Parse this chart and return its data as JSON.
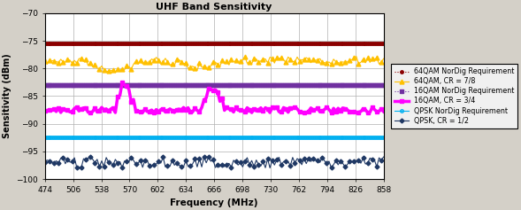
{
  "title": "UHF Band Sensitivity",
  "xlabel": "Frequency (MHz)",
  "ylabel": "Sensitivity (dBm)",
  "xlim": [
    474,
    858
  ],
  "ylim": [
    -100,
    -70
  ],
  "xticks": [
    474,
    506,
    538,
    570,
    602,
    634,
    666,
    698,
    730,
    762,
    794,
    826,
    858
  ],
  "yticks": [
    -100,
    -95,
    -90,
    -85,
    -80,
    -75,
    -70
  ],
  "background_color": "#d4d0c8",
  "plot_bg_color": "#ffffff",
  "series": {
    "qpsk_cr12": {
      "label": "QPSK, CR = 1/2",
      "color": "#1f3864",
      "marker": "D",
      "markersize": 2.5,
      "linewidth": 0.8,
      "base_value": -97.0,
      "noise_amp": 1.0
    },
    "qam16_cr34": {
      "label": "16QAM, CR = 3/4",
      "color": "#ff00ff",
      "marker": "s",
      "markersize": 2.5,
      "linewidth": 2.5,
      "base_value": -87.5,
      "noise_amp": 0.5
    },
    "qam64_cr78": {
      "label": "64QAM, CR = 7/8",
      "color": "#ffc000",
      "marker": "^",
      "markersize": 3.5,
      "linewidth": 0.8,
      "base_value": -78.5,
      "noise_amp": 0.7
    },
    "qpsk_nordig": {
      "label": "QPSK NorDig Requirement",
      "color": "#00b0f0",
      "marker": "o",
      "markersize": 2.5,
      "linewidth": 0.8,
      "value": -92.5
    },
    "qam16_nordig": {
      "label": "16QAM NorDig Requirement",
      "color": "#7030a0",
      "marker": "s",
      "markersize": 2.5,
      "linewidth": 0.8,
      "value": -83.0
    },
    "qam64_nordig": {
      "label": "64QAM NorDig Requirement",
      "color": "#8b0000",
      "marker": "o",
      "markersize": 2.5,
      "linewidth": 0.8,
      "value": -75.5
    }
  }
}
